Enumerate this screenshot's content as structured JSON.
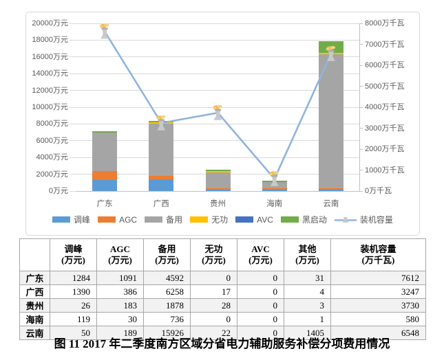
{
  "caption": "图 11  2017 年二季度南方区域分省电力辅助服务补偿分项费用情况",
  "chart_data": {
    "type": "combo-stacked-bar-line",
    "categories": [
      "广东",
      "广西",
      "贵州",
      "海南",
      "云南"
    ],
    "series": [
      {
        "name": "调峰",
        "type": "bar",
        "color": "#5B9BD5",
        "values": [
          1284,
          1390,
          26,
          119,
          50
        ]
      },
      {
        "name": "AGC",
        "type": "bar",
        "color": "#ED7D31",
        "values": [
          1091,
          386,
          183,
          30,
          189
        ]
      },
      {
        "name": "备用",
        "type": "bar",
        "color": "#A5A5A5",
        "values": [
          4592,
          6258,
          1878,
          736,
          15926
        ]
      },
      {
        "name": "无功",
        "type": "bar",
        "color": "#FFC000",
        "values": [
          0,
          17,
          28,
          0,
          22
        ]
      },
      {
        "name": "AVC",
        "type": "bar",
        "color": "#4472C4",
        "values": [
          0,
          0,
          0,
          0,
          0
        ]
      },
      {
        "name": "黑启动",
        "type": "bar",
        "color": "#70AD47",
        "values": [
          31,
          4,
          3,
          1,
          1405
        ]
      },
      {
        "name": "装机容量",
        "type": "line",
        "color": "#8FB4DE",
        "axis": "right",
        "values": [
          7612,
          3247,
          3730,
          580,
          6548
        ]
      }
    ],
    "left_axis": {
      "min": 0,
      "max": 20000,
      "step": 2000,
      "unit": "万元"
    },
    "right_axis": {
      "min": 0,
      "max": 8000,
      "step": 1000,
      "unit": "万千瓦"
    },
    "axis_tick_labels": {
      "left": [
        "20000万元",
        "18000万元",
        "16000万元",
        "14000万元",
        "12000万元",
        "10000万元",
        "8000万元",
        "6000万元",
        "4000万元",
        "2000万元",
        "0万元"
      ],
      "right": [
        "8000万千瓦",
        "7000万千瓦",
        "6000万千瓦",
        "5000万千瓦",
        "4000万千瓦",
        "3000万千瓦",
        "2000万千瓦",
        "1000万千瓦",
        "0万千瓦"
      ]
    },
    "legend_position": "bottom",
    "grid": true,
    "style": {
      "grid_color": "#D9D9D9",
      "axis_line_color": "#BFBFBF",
      "axis_text_color": "#595959",
      "marker_tower_color": "#C9C9C9",
      "marker_rim_color": "#ADADAD",
      "marker_smoke_color": "#F3BC51",
      "marker_smoke_light": "#F7D27E"
    }
  },
  "table": {
    "col_headers": [
      {
        "line1": "",
        "line2": ""
      },
      {
        "line1": "调峰",
        "line2": "(万元)"
      },
      {
        "line1": "AGC",
        "line2": "(万元)"
      },
      {
        "line1": "备用",
        "line2": "(万元)"
      },
      {
        "line1": "无功",
        "line2": "(万元)"
      },
      {
        "line1": "AVC",
        "line2": "(万元)"
      },
      {
        "line1": "其他",
        "line2": "(万元)"
      },
      {
        "line1": "装机容量",
        "line2": "(万千瓦)"
      }
    ],
    "rows": [
      {
        "name": "广东",
        "values": [
          "1284",
          "1091",
          "4592",
          "0",
          "0",
          "31",
          "7612"
        ]
      },
      {
        "name": "广西",
        "values": [
          "1390",
          "386",
          "6258",
          "17",
          "0",
          "4",
          "3247"
        ]
      },
      {
        "name": "贵州",
        "values": [
          "26",
          "183",
          "1878",
          "28",
          "0",
          "3",
          "3730"
        ]
      },
      {
        "name": "海南",
        "values": [
          "119",
          "30",
          "736",
          "0",
          "0",
          "1",
          "580"
        ]
      },
      {
        "name": "云南",
        "values": [
          "50",
          "189",
          "15926",
          "22",
          "0",
          "1405",
          "6548"
        ]
      }
    ]
  }
}
